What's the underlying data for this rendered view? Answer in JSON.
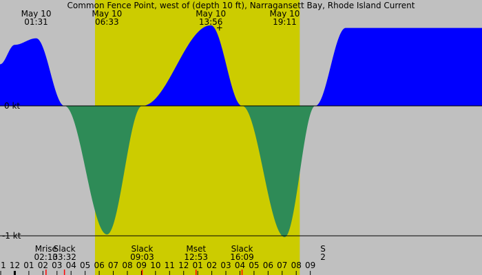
{
  "chart_data": {
    "type": "area",
    "title": "Common Fence Point, west of (depth 10 ft), Narragansett Bay, Rhode Island Current",
    "ylim": [
      -1,
      0.78
    ],
    "ytick_labels": [
      {
        "value": 0,
        "label": "0 kt"
      },
      {
        "value": -1,
        "label": "-1 kt"
      }
    ],
    "xlim_hours": [
      -1.05,
      33.2
    ],
    "daylight_hours": [
      5.7,
      20.25
    ],
    "colors": {
      "background_night": "#c0c0c0",
      "background_day": "#cccc00",
      "flood": "#0000ff",
      "ebb": "#2e8b57",
      "moon_marker": "#ff0000"
    },
    "top_labels": [
      {
        "hour": 1.52,
        "date": "May 10",
        "time": "01:31"
      },
      {
        "hour": 6.55,
        "date": "May 10",
        "time": "06:33"
      },
      {
        "hour": 13.93,
        "date": "May 10",
        "time": "13:56"
      },
      {
        "hour": 19.18,
        "date": "May 10",
        "time": "19:11"
      }
    ],
    "bottom_events": [
      {
        "hour": 2.22,
        "name": "Mrise",
        "time": "02:13",
        "marker": "red"
      },
      {
        "hour": 3.53,
        "name": "Slack",
        "time": "03:32",
        "marker": "red"
      },
      {
        "hour": 9.05,
        "name": "Slack",
        "time": "09:03",
        "marker": "red"
      },
      {
        "hour": 12.88,
        "name": "Mset",
        "time": "12:53",
        "marker": "red"
      },
      {
        "hour": 16.15,
        "name": "Slack",
        "time": "16:09",
        "marker": "red"
      },
      {
        "hour": 21.9,
        "name": "S",
        "time": "2",
        "marker": "none"
      }
    ],
    "hour_ticks": [
      {
        "hour": -1,
        "label": "11"
      },
      {
        "hour": 0,
        "label": "12"
      },
      {
        "hour": 1,
        "label": "01"
      },
      {
        "hour": 2,
        "label": "02"
      },
      {
        "hour": 3,
        "label": "03"
      },
      {
        "hour": 4,
        "label": "04"
      },
      {
        "hour": 5,
        "label": "05"
      },
      {
        "hour": 6,
        "label": "06"
      },
      {
        "hour": 7,
        "label": "07"
      },
      {
        "hour": 8,
        "label": "08"
      },
      {
        "hour": 9,
        "label": "09"
      },
      {
        "hour": 10,
        "label": "10"
      },
      {
        "hour": 11,
        "label": "11"
      },
      {
        "hour": 12,
        "label": "12"
      },
      {
        "hour": 13,
        "label": "01"
      },
      {
        "hour": 14,
        "label": "02"
      },
      {
        "hour": 15,
        "label": "03"
      },
      {
        "hour": 16,
        "label": "04"
      },
      {
        "hour": 17,
        "label": "05"
      },
      {
        "hour": 18,
        "label": "06"
      },
      {
        "hour": 19,
        "label": "07"
      },
      {
        "hour": 20,
        "label": "08"
      },
      {
        "hour": 21,
        "label": "09"
      }
    ],
    "series": [
      {
        "name": "Current",
        "points": [
          {
            "x": -1.05,
            "y": 0.32
          },
          {
            "x": 0,
            "y": 0.47
          },
          {
            "x": 1.52,
            "y": 0.52
          },
          {
            "x": 3.53,
            "y": 0
          },
          {
            "x": 6.55,
            "y": -0.99
          },
          {
            "x": 9.05,
            "y": 0
          },
          {
            "x": 13.93,
            "y": 0.62
          },
          {
            "x": 16.15,
            "y": 0
          },
          {
            "x": 19.18,
            "y": -1.01
          },
          {
            "x": 21.35,
            "y": 0
          }
        ]
      }
    ],
    "max_marker": {
      "hour": 14.55,
      "value": 0.6,
      "symbol": "+"
    }
  }
}
